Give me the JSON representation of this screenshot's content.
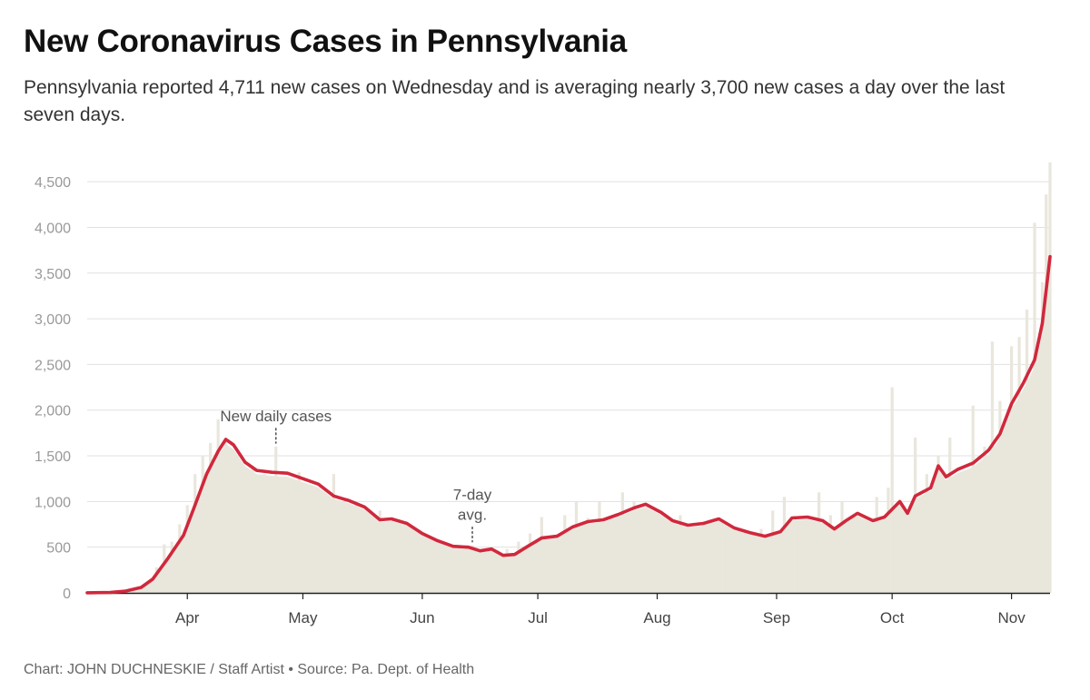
{
  "header": {
    "title": "New Coronavirus Cases in Pennsylvania",
    "subtitle": "Pennsylvania reported 4,711 new cases on Wednesday and is averaging nearly 3,700 new cases a day over the last seven days."
  },
  "footer": {
    "credit": "Chart: JOHN DUCHNESKIE / Staff Artist • Source: Pa. Dept. of Health"
  },
  "colors": {
    "bars": "#e9e6dc",
    "avg_line": "#d0283c",
    "grid": "#e1e1e1"
  },
  "chart_data": {
    "type": "bar",
    "title": "New Coronavirus Cases in Pennsylvania",
    "ylim": [
      0,
      4700
    ],
    "yticks": [
      0,
      500,
      1000,
      1500,
      2000,
      2500,
      3000,
      3500,
      4000,
      4500
    ],
    "ytick_labels": [
      "0",
      "500",
      "1,000",
      "1,500",
      "2,000",
      "2,500",
      "3,000",
      "3,500",
      "4,000",
      "4,500"
    ],
    "x_start": "2020-03-06",
    "x_end": "2020-11-11",
    "month_ticks": [
      {
        "label": "Apr",
        "date": "2020-04-01"
      },
      {
        "label": "May",
        "date": "2020-05-01"
      },
      {
        "label": "Jun",
        "date": "2020-06-01"
      },
      {
        "label": "Jul",
        "date": "2020-07-01"
      },
      {
        "label": "Aug",
        "date": "2020-08-01"
      },
      {
        "label": "Sep",
        "date": "2020-09-01"
      },
      {
        "label": "Oct",
        "date": "2020-10-01"
      },
      {
        "label": "Nov",
        "date": "2020-11-01"
      }
    ],
    "grid": true,
    "annotations": [
      {
        "text": [
          "New daily cases"
        ],
        "date": "2020-04-24",
        "value": 1600
      },
      {
        "text": [
          "7-day",
          "avg."
        ],
        "date": "2020-06-14",
        "value": 520
      }
    ],
    "series": [
      {
        "name": "New daily cases",
        "kind": "bar",
        "points": [
          [
            "2020-03-06",
            2
          ],
          [
            "2020-03-10",
            5
          ],
          [
            "2020-03-14",
            15
          ],
          [
            "2020-03-16",
            20
          ],
          [
            "2020-03-18",
            40
          ],
          [
            "2020-03-20",
            70
          ],
          [
            "2020-03-22",
            120
          ],
          [
            "2020-03-24",
            280
          ],
          [
            "2020-03-26",
            530
          ],
          [
            "2020-03-28",
            560
          ],
          [
            "2020-03-30",
            750
          ],
          [
            "2020-04-01",
            960
          ],
          [
            "2020-04-03",
            1300
          ],
          [
            "2020-04-05",
            1500
          ],
          [
            "2020-04-07",
            1640
          ],
          [
            "2020-04-09",
            1900
          ],
          [
            "2020-04-11",
            1650
          ],
          [
            "2020-04-13",
            1200
          ],
          [
            "2020-04-15",
            1250
          ],
          [
            "2020-04-18",
            1380
          ],
          [
            "2020-04-21",
            1300
          ],
          [
            "2020-04-24",
            1600
          ],
          [
            "2020-04-27",
            1250
          ],
          [
            "2020-04-30",
            1320
          ],
          [
            "2020-05-03",
            1180
          ],
          [
            "2020-05-06",
            1100
          ],
          [
            "2020-05-09",
            1300
          ],
          [
            "2020-05-12",
            950
          ],
          [
            "2020-05-15",
            1000
          ],
          [
            "2020-05-18",
            800
          ],
          [
            "2020-05-21",
            900
          ],
          [
            "2020-05-24",
            720
          ],
          [
            "2020-05-27",
            680
          ],
          [
            "2020-05-30",
            620
          ],
          [
            "2020-06-02",
            560
          ],
          [
            "2020-06-05",
            520
          ],
          [
            "2020-06-08",
            480
          ],
          [
            "2020-06-11",
            420
          ],
          [
            "2020-06-14",
            520
          ],
          [
            "2020-06-17",
            380
          ],
          [
            "2020-06-20",
            420
          ],
          [
            "2020-06-23",
            480
          ],
          [
            "2020-06-26",
            560
          ],
          [
            "2020-06-29",
            650
          ],
          [
            "2020-07-02",
            830
          ],
          [
            "2020-07-05",
            600
          ],
          [
            "2020-07-08",
            850
          ],
          [
            "2020-07-11",
            1000
          ],
          [
            "2020-07-14",
            820
          ],
          [
            "2020-07-17",
            1000
          ],
          [
            "2020-07-20",
            800
          ],
          [
            "2020-07-23",
            1100
          ],
          [
            "2020-07-26",
            1000
          ],
          [
            "2020-07-29",
            920
          ],
          [
            "2020-08-01",
            800
          ],
          [
            "2020-08-04",
            750
          ],
          [
            "2020-08-07",
            850
          ],
          [
            "2020-08-10",
            700
          ],
          [
            "2020-08-13",
            760
          ],
          [
            "2020-08-16",
            600
          ],
          [
            "2020-08-19",
            700
          ],
          [
            "2020-08-22",
            650
          ],
          [
            "2020-08-25",
            600
          ],
          [
            "2020-08-28",
            700
          ],
          [
            "2020-08-31",
            900
          ],
          [
            "2020-09-03",
            1050
          ],
          [
            "2020-09-06",
            800
          ],
          [
            "2020-09-09",
            650
          ],
          [
            "2020-09-12",
            1100
          ],
          [
            "2020-09-15",
            850
          ],
          [
            "2020-09-18",
            1000
          ],
          [
            "2020-09-21",
            850
          ],
          [
            "2020-09-24",
            800
          ],
          [
            "2020-09-27",
            1050
          ],
          [
            "2020-09-30",
            1150
          ],
          [
            "2020-10-01",
            2250
          ],
          [
            "2020-10-04",
            700
          ],
          [
            "2020-10-07",
            1700
          ],
          [
            "2020-10-10",
            1300
          ],
          [
            "2020-10-13",
            1500
          ],
          [
            "2020-10-16",
            1700
          ],
          [
            "2020-10-19",
            1100
          ],
          [
            "2020-10-22",
            2050
          ],
          [
            "2020-10-25",
            1600
          ],
          [
            "2020-10-27",
            2750
          ],
          [
            "2020-10-29",
            2100
          ],
          [
            "2020-11-01",
            2700
          ],
          [
            "2020-11-03",
            2800
          ],
          [
            "2020-11-05",
            3100
          ],
          [
            "2020-11-07",
            4050
          ],
          [
            "2020-11-09",
            3400
          ],
          [
            "2020-11-10",
            4360
          ],
          [
            "2020-11-11",
            4711
          ]
        ]
      },
      {
        "name": "7-day avg.",
        "kind": "line",
        "points": [
          [
            "2020-03-06",
            1
          ],
          [
            "2020-03-12",
            5
          ],
          [
            "2020-03-16",
            20
          ],
          [
            "2020-03-20",
            60
          ],
          [
            "2020-03-23",
            150
          ],
          [
            "2020-03-27",
            380
          ],
          [
            "2020-03-31",
            630
          ],
          [
            "2020-04-03",
            960
          ],
          [
            "2020-04-06",
            1300
          ],
          [
            "2020-04-09",
            1550
          ],
          [
            "2020-04-11",
            1680
          ],
          [
            "2020-04-13",
            1620
          ],
          [
            "2020-04-16",
            1430
          ],
          [
            "2020-04-19",
            1340
          ],
          [
            "2020-04-23",
            1320
          ],
          [
            "2020-04-27",
            1310
          ],
          [
            "2020-05-01",
            1250
          ],
          [
            "2020-05-05",
            1190
          ],
          [
            "2020-05-09",
            1060
          ],
          [
            "2020-05-13",
            1010
          ],
          [
            "2020-05-17",
            940
          ],
          [
            "2020-05-21",
            800
          ],
          [
            "2020-05-24",
            810
          ],
          [
            "2020-05-28",
            760
          ],
          [
            "2020-06-01",
            650
          ],
          [
            "2020-06-05",
            570
          ],
          [
            "2020-06-09",
            510
          ],
          [
            "2020-06-13",
            500
          ],
          [
            "2020-06-16",
            460
          ],
          [
            "2020-06-19",
            480
          ],
          [
            "2020-06-22",
            410
          ],
          [
            "2020-06-25",
            420
          ],
          [
            "2020-06-28",
            500
          ],
          [
            "2020-07-02",
            600
          ],
          [
            "2020-07-06",
            620
          ],
          [
            "2020-07-10",
            720
          ],
          [
            "2020-07-14",
            780
          ],
          [
            "2020-07-18",
            800
          ],
          [
            "2020-07-22",
            860
          ],
          [
            "2020-07-26",
            930
          ],
          [
            "2020-07-29",
            970
          ],
          [
            "2020-08-02",
            880
          ],
          [
            "2020-08-05",
            790
          ],
          [
            "2020-08-09",
            740
          ],
          [
            "2020-08-13",
            760
          ],
          [
            "2020-08-17",
            810
          ],
          [
            "2020-08-21",
            710
          ],
          [
            "2020-08-25",
            660
          ],
          [
            "2020-08-29",
            620
          ],
          [
            "2020-09-02",
            670
          ],
          [
            "2020-09-05",
            820
          ],
          [
            "2020-09-09",
            830
          ],
          [
            "2020-09-13",
            790
          ],
          [
            "2020-09-16",
            700
          ],
          [
            "2020-09-19",
            790
          ],
          [
            "2020-09-22",
            870
          ],
          [
            "2020-09-26",
            790
          ],
          [
            "2020-09-29",
            830
          ],
          [
            "2020-10-03",
            1000
          ],
          [
            "2020-10-05",
            870
          ],
          [
            "2020-10-07",
            1060
          ],
          [
            "2020-10-11",
            1150
          ],
          [
            "2020-10-13",
            1390
          ],
          [
            "2020-10-15",
            1270
          ],
          [
            "2020-10-18",
            1350
          ],
          [
            "2020-10-22",
            1420
          ],
          [
            "2020-10-26",
            1560
          ],
          [
            "2020-10-29",
            1740
          ],
          [
            "2020-11-01",
            2070
          ],
          [
            "2020-11-04",
            2290
          ],
          [
            "2020-11-07",
            2550
          ],
          [
            "2020-11-09",
            2950
          ],
          [
            "2020-11-11",
            3680
          ]
        ]
      }
    ]
  }
}
